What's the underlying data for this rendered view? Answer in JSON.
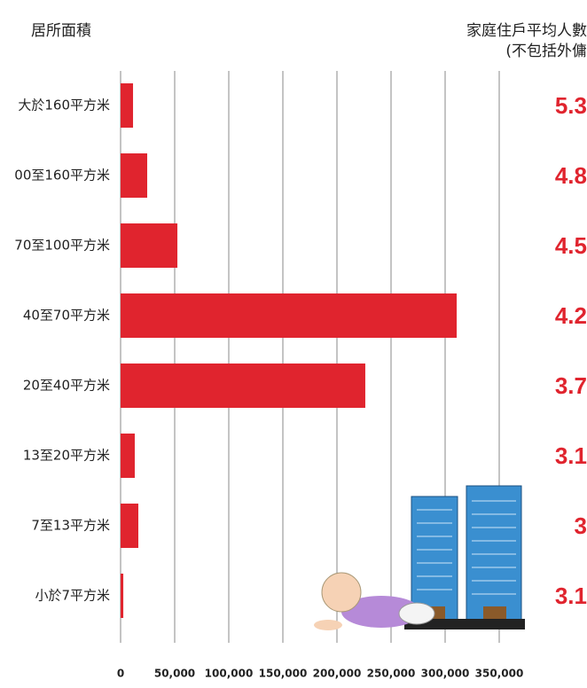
{
  "chart_data": {
    "type": "bar",
    "orientation": "horizontal",
    "title": "居所面積",
    "side_title": [
      "家庭住戶平均人數",
      "(不包括外傭"
    ],
    "categories": [
      "大於160平方米",
      "00至160平方米",
      "70至100平方米",
      "40至70平方米",
      "20至40平方米",
      "13至20平方米",
      "7至13平方米",
      "小於7平方米"
    ],
    "values": [
      11500,
      24600,
      52500,
      310700,
      226200,
      13100,
      16400,
      2500
    ],
    "side_values": [
      "5.3",
      "4.8",
      "4.5",
      "4.2",
      "3.7",
      "3.1",
      "3",
      "3.1"
    ],
    "color": "#e0242e",
    "xlim": [
      0,
      350000
    ],
    "xticks": [
      0,
      {
        "value": 50000,
        "label": "50,000"
      },
      {
        "value": 100000,
        "label": "100,000"
      },
      {
        "value": 150000,
        "label": "150,000"
      },
      {
        "value": 200000,
        "label": "200,000"
      },
      {
        "value": 250000,
        "label": "250,000"
      },
      {
        "value": 300000,
        "label": "300,000"
      },
      {
        "value": 350000,
        "label": "350,000"
      }
    ],
    "grid": true
  }
}
